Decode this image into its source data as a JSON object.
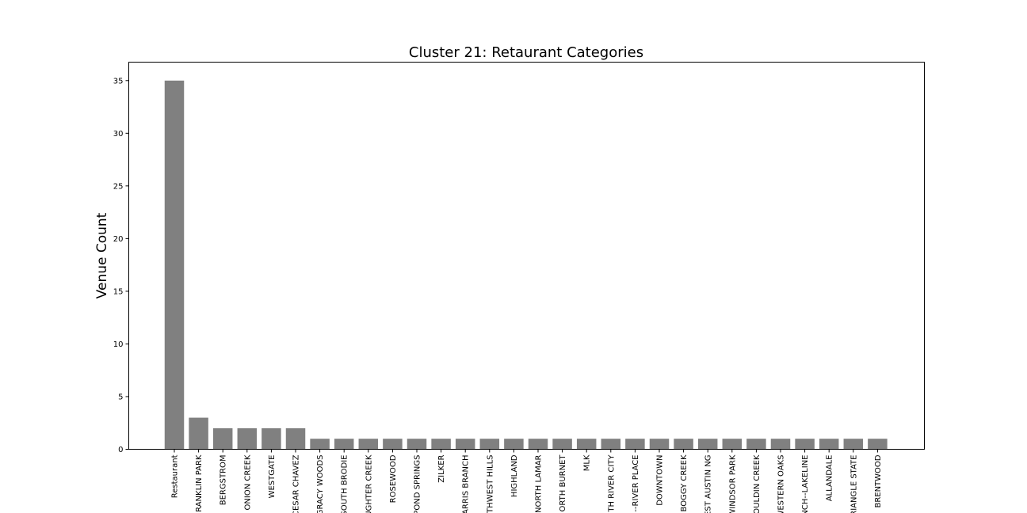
{
  "chart_data": {
    "type": "bar",
    "title": "Cluster 21: Retaurant Categories",
    "xlabel": "",
    "ylabel": "Venue Count",
    "ylim": [
      0,
      36.75
    ],
    "yticks": [
      0,
      5,
      10,
      15,
      20,
      25,
      30,
      35
    ],
    "grid": false,
    "bar_color": "#808080",
    "categories": [
      "Restaurant",
      "RANKLIN PARK",
      "BERGSTROM",
      "ONION CREEK",
      "WESTGATE",
      "CESAR CHAVEZ",
      "GRACY WOODS",
      "SOUTH BRODIE",
      "UGHTER CREEK",
      "ROSEWOOD",
      "POND SPRINGS",
      "ZILKER",
      "ARRIS BRANCH",
      "THWEST HILLS",
      "HIGHLAND",
      "NORTH LAMAR",
      "ORTH BURNET",
      "MLK",
      "TH RIVER CITY",
      "--RIVER PLACE",
      "DOWNTOWN",
      "BOGGY CREEK",
      "EST AUSTIN NG",
      "WINDSOR PARK",
      "OULDIN CREEK",
      "WESTERN OAKS",
      "NCH--LAKELINE",
      "ALLANDALE",
      "RIANGLE STATE",
      "BRENTWOOD"
    ],
    "values": [
      35,
      3,
      2,
      2,
      2,
      2,
      1,
      1,
      1,
      1,
      1,
      1,
      1,
      1,
      1,
      1,
      1,
      1,
      1,
      1,
      1,
      1,
      1,
      1,
      1,
      1,
      1,
      1,
      1,
      1
    ]
  }
}
